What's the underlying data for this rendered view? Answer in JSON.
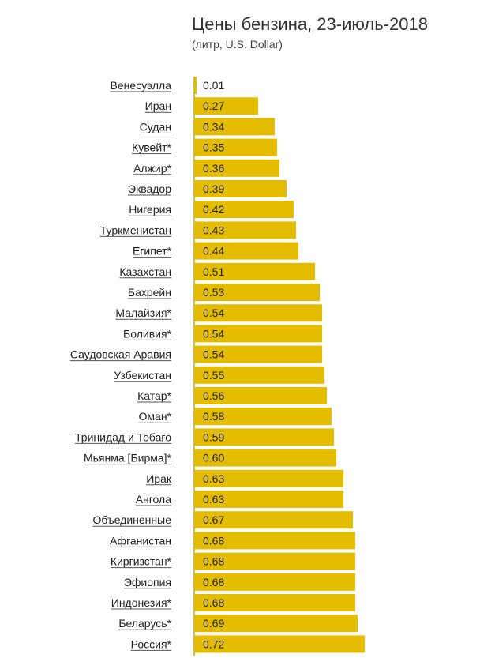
{
  "chart_data": {
    "type": "bar",
    "orientation": "horizontal",
    "title": "Цены бензина, 23-июль-2018",
    "subtitle": "(литр, U.S. Dollar)",
    "xlabel": "",
    "ylabel": "",
    "xlim": [
      0,
      0.72
    ],
    "bar_color": "#e5bd00",
    "categories": [
      "Венесуэлла",
      "Иран",
      "Судан",
      "Кувейт*",
      "Алжир*",
      "Эквадор",
      "Нигерия",
      "Туркменистан",
      "Египет*",
      "Казахстан",
      "Бахрейн",
      "Малайзия*",
      "Боливия*",
      "Саудовская Аравия",
      "Узбекистан",
      "Катар*",
      "Оман*",
      "Тринидад и Тобаго",
      "Мьянма [Бирма]*",
      "Ирак",
      "Ангола",
      "Объединенные",
      "Афганистан",
      "Киргизстан*",
      "Эфиопия",
      "Индонезия*",
      "Беларусь*",
      "Россия*"
    ],
    "values": [
      0.01,
      0.27,
      0.34,
      0.35,
      0.36,
      0.39,
      0.42,
      0.43,
      0.44,
      0.51,
      0.53,
      0.54,
      0.54,
      0.54,
      0.55,
      0.56,
      0.58,
      0.59,
      0.6,
      0.63,
      0.63,
      0.67,
      0.68,
      0.68,
      0.68,
      0.68,
      0.69,
      0.72
    ],
    "value_labels": [
      "0.01",
      "0.27",
      "0.34",
      "0.35",
      "0.36",
      "0.39",
      "0.42",
      "0.43",
      "0.44",
      "0.51",
      "0.53",
      "0.54",
      "0.54",
      "0.54",
      "0.55",
      "0.56",
      "0.58",
      "0.59",
      "0.60",
      "0.63",
      "0.63",
      "0.67",
      "0.68",
      "0.68",
      "0.68",
      "0.68",
      "0.69",
      "0.72"
    ]
  }
}
